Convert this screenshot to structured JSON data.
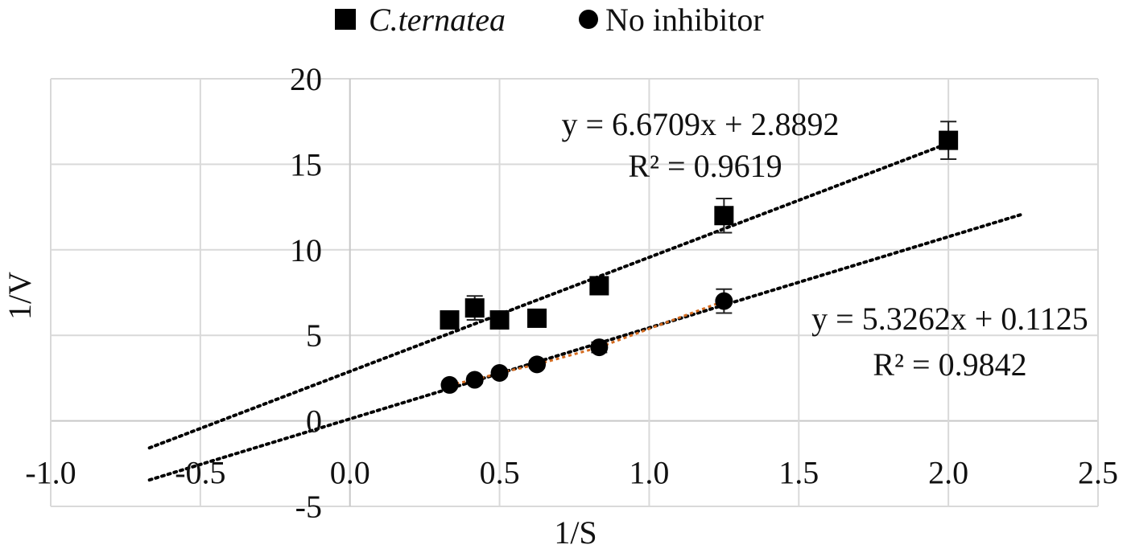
{
  "chart_data": {
    "type": "scatter",
    "title": "",
    "xlabel": "1/S",
    "ylabel": "1/V",
    "xlim": [
      -1.0,
      2.5
    ],
    "ylim": [
      -5,
      20
    ],
    "xticks": [
      "-1.0",
      "-0.5",
      "0.0",
      "0.5",
      "1.0",
      "1.5",
      "2.0",
      "2.5"
    ],
    "yticks": [
      "-5",
      "0",
      "5",
      "10",
      "15",
      "20"
    ],
    "grid": true,
    "legend_position": "top",
    "series": [
      {
        "name": "C.ternatea",
        "marker": "square",
        "color": "#000000",
        "x": [
          0.333,
          0.417,
          0.5,
          0.625,
          0.833,
          1.25,
          2.0
        ],
        "y": [
          5.9,
          6.6,
          5.9,
          6.0,
          7.9,
          12.0,
          16.4
        ],
        "error": [
          0.4,
          0.7,
          0.3,
          0.3,
          0.5,
          1.0,
          1.1
        ],
        "trendline": {
          "slope": 6.6709,
          "intercept": 2.8892,
          "x_range": [
            -0.67,
            2.0
          ],
          "color": "#000000",
          "equation": "y = 6.6709x + 2.8892",
          "r2": "R² = 0.9619"
        }
      },
      {
        "name": "No inhibitor",
        "marker": "circle",
        "color": "#000000",
        "x": [
          0.333,
          0.417,
          0.5,
          0.625,
          0.833,
          1.25
        ],
        "y": [
          2.1,
          2.4,
          2.8,
          3.3,
          4.3,
          7.0
        ],
        "error": [
          0.2,
          0.2,
          0.2,
          0.2,
          0.3,
          0.7
        ],
        "connector_color": "#d46a1e",
        "trendline": {
          "slope": 5.3262,
          "intercept": 0.1125,
          "x_range": [
            -0.67,
            2.25
          ],
          "color": "#000000",
          "equation": "y = 5.3262x + 0.1125",
          "r2": "R² = 0.9842"
        }
      }
    ]
  }
}
